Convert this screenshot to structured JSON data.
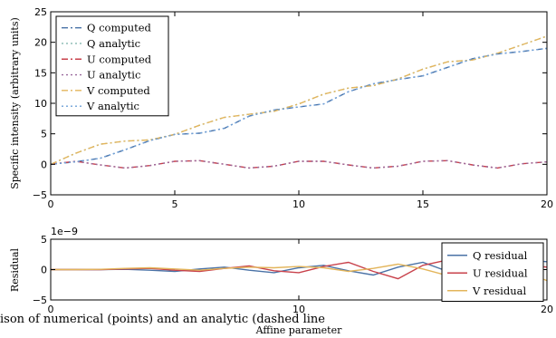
{
  "colors": {
    "Q": "#4a72a6",
    "U": "#c8414b",
    "V": "#e3b55b"
  },
  "chart_data": [
    {
      "type": "line",
      "ylabel": "Specific intensity (arbitrary units)",
      "xlim": [
        0,
        20
      ],
      "ylim": [
        -5,
        25
      ],
      "xticks": [
        "0",
        "5",
        "10",
        "15",
        "20"
      ],
      "yticks": [
        "−5",
        "0",
        "5",
        "10",
        "15",
        "20",
        "25"
      ],
      "legend_position": "top-left",
      "series": [
        {
          "name": "Q computed",
          "style": "dashdot",
          "color": "#4a72a6",
          "x": [
            0,
            1,
            2,
            3,
            4,
            5,
            6,
            7,
            8,
            9,
            10,
            11,
            12,
            13,
            14,
            15,
            16,
            17,
            18,
            19,
            20
          ],
          "y": [
            0,
            0.4,
            1.0,
            2.4,
            3.9,
            4.9,
            5.1,
            5.9,
            7.9,
            8.9,
            9.4,
            9.9,
            11.9,
            13.2,
            13.9,
            14.5,
            15.9,
            17.3,
            18.1,
            18.5,
            19.0
          ]
        },
        {
          "name": "Q analytic",
          "style": "dotted",
          "color": "#86b8b0",
          "x": [
            0,
            1,
            2,
            3,
            4,
            5,
            6,
            7,
            8,
            9,
            10,
            11,
            12,
            13,
            14,
            15,
            16,
            17,
            18,
            19,
            20
          ],
          "y": [
            0,
            1.8,
            3.3,
            3.8,
            4.0,
            4.9,
            6.4,
            7.7,
            8.2,
            8.7,
            9.9,
            11.5,
            12.5,
            12.9,
            14.0,
            15.6,
            16.8,
            17.1,
            18.2,
            19.6,
            21.0
          ]
        },
        {
          "name": "U computed",
          "style": "dashdot",
          "color": "#c8414b",
          "x": [
            0,
            1,
            2,
            3,
            4,
            5,
            6,
            7,
            8,
            9,
            10,
            11,
            12,
            13,
            14,
            15,
            16,
            17,
            18,
            19,
            20
          ],
          "y": [
            0,
            0.5,
            -0.1,
            -0.6,
            -0.2,
            0.5,
            0.6,
            0.0,
            -0.6,
            -0.3,
            0.5,
            0.5,
            -0.1,
            -0.6,
            -0.3,
            0.5,
            0.6,
            -0.1,
            -0.6,
            0.1,
            0.4
          ]
        },
        {
          "name": "U analytic",
          "style": "dotted",
          "color": "#9a6a9e",
          "x": [
            0,
            1,
            2,
            3,
            4,
            5,
            6,
            7,
            8,
            9,
            10,
            11,
            12,
            13,
            14,
            15,
            16,
            17,
            18,
            19,
            20
          ],
          "y": [
            0,
            0.5,
            -0.1,
            -0.6,
            -0.2,
            0.5,
            0.6,
            0.0,
            -0.6,
            -0.3,
            0.5,
            0.5,
            -0.1,
            -0.6,
            -0.3,
            0.5,
            0.6,
            -0.1,
            -0.6,
            0.1,
            0.4
          ]
        },
        {
          "name": "V computed",
          "style": "dashdot",
          "color": "#e3b55b",
          "x": [
            0,
            1,
            2,
            3,
            4,
            5,
            6,
            7,
            8,
            9,
            10,
            11,
            12,
            13,
            14,
            15,
            16,
            17,
            18,
            19,
            20
          ],
          "y": [
            0,
            1.8,
            3.3,
            3.8,
            4.0,
            4.9,
            6.4,
            7.7,
            8.2,
            8.7,
            9.9,
            11.5,
            12.5,
            12.9,
            14.0,
            15.6,
            16.8,
            17.1,
            18.2,
            19.6,
            21.0
          ]
        },
        {
          "name": "V analytic",
          "style": "dotted",
          "color": "#6fa0d8",
          "x": [
            0,
            1,
            2,
            3,
            4,
            5,
            6,
            7,
            8,
            9,
            10,
            11,
            12,
            13,
            14,
            15,
            16,
            17,
            18,
            19,
            20
          ],
          "y": [
            0,
            0.4,
            1.0,
            2.4,
            3.9,
            4.9,
            5.1,
            5.9,
            7.9,
            8.9,
            9.4,
            9.9,
            11.9,
            13.2,
            13.9,
            14.5,
            15.9,
            17.3,
            18.1,
            18.5,
            19.0
          ]
        }
      ]
    },
    {
      "type": "line",
      "xlabel": "Affine parameter",
      "ylabel": "Residual",
      "offset_label": "1e−9",
      "xlim": [
        0,
        20
      ],
      "ylim": [
        -5,
        5
      ],
      "xticks": [
        "0",
        "10",
        "20"
      ],
      "yticks": [
        "−5",
        "0",
        "5"
      ],
      "legend_position": "right",
      "series": [
        {
          "name": "Q residual",
          "color": "#4a72a6",
          "x": [
            0,
            1,
            2,
            3,
            4,
            5,
            6,
            7,
            8,
            9,
            10,
            11,
            12,
            13,
            14,
            15,
            16,
            17,
            18,
            19,
            20
          ],
          "y": [
            0,
            0,
            0,
            0.05,
            -0.1,
            -0.3,
            0.1,
            0.4,
            -0.1,
            -0.5,
            0.3,
            0.7,
            -0.2,
            -0.9,
            0.4,
            1.2,
            -0.3,
            -1.4,
            0.5,
            1.6,
            1.3
          ]
        },
        {
          "name": "U residual",
          "color": "#c8414b",
          "x": [
            0,
            1,
            2,
            3,
            4,
            5,
            6,
            7,
            8,
            9,
            10,
            11,
            12,
            13,
            14,
            15,
            16,
            17,
            18,
            19,
            20
          ],
          "y": [
            0,
            0,
            0,
            0.1,
            0.2,
            -0.1,
            -0.3,
            0.2,
            0.6,
            -0.2,
            -0.5,
            0.5,
            1.2,
            -0.3,
            -1.5,
            0.7,
            1.6,
            -0.4,
            -2.0,
            0.8,
            0.4
          ]
        },
        {
          "name": "V residual",
          "color": "#e3b55b",
          "x": [
            0,
            1,
            2,
            3,
            4,
            5,
            6,
            7,
            8,
            9,
            10,
            11,
            12,
            13,
            14,
            15,
            16,
            17,
            18,
            19,
            20
          ],
          "y": [
            0,
            0,
            0.05,
            0.2,
            0.3,
            0.1,
            -0.1,
            0.2,
            0.4,
            0.3,
            0.5,
            0.3,
            -0.3,
            0.2,
            0.9,
            0.1,
            -1.0,
            0.3,
            1.3,
            -0.3,
            -1.8
          ]
        }
      ]
    }
  ],
  "caption": "ison of numerical (points) and an analytic (dashed line"
}
